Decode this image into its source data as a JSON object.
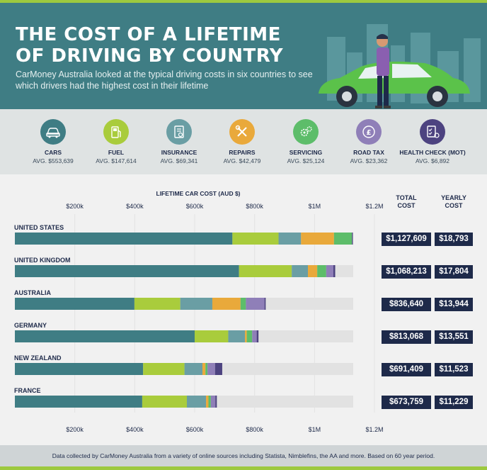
{
  "header": {
    "title_line1": "THE COST OF A LIFETIME",
    "title_line2": "OF DRIVING BY COUNTRY",
    "subtitle": "CarMoney Australia looked at the typical driving costs in six countries to see which drivers had the highest cost in their lifetime"
  },
  "categories": [
    {
      "label": "CARS",
      "avg": "AVG. $553,639",
      "icon": "car-icon",
      "color": "#3f7d84"
    },
    {
      "label": "FUEL",
      "avg": "AVG. $147,614",
      "icon": "fuel-pump-icon",
      "color": "#a9cc3c"
    },
    {
      "label": "INSURANCE",
      "avg": "AVG. $69,341",
      "icon": "insurance-document-icon",
      "color": "#6a9ea4"
    },
    {
      "label": "REPAIRS",
      "avg": "AVG. $42,479",
      "icon": "wrench-screwdriver-icon",
      "color": "#e9a93b"
    },
    {
      "label": "SERVICING",
      "avg": "AVG. $25,124",
      "icon": "gears-icon",
      "color": "#5dbd6a"
    },
    {
      "label": "ROAD TAX",
      "avg": "AVG. $23,362",
      "icon": "pound-coin-icon",
      "color": "#8f7fb8"
    },
    {
      "label": "HEALTH CHECK (MOT)",
      "avg": "AVG. $6,892",
      "icon": "checklist-car-icon",
      "color": "#4d4380"
    }
  ],
  "columns": {
    "total_line1": "TOTAL",
    "total_line2": "COST",
    "yearly_line1": "YEARLY",
    "yearly_line2": "COST"
  },
  "chart_data": {
    "type": "bar",
    "orientation": "horizontal",
    "stacked": true,
    "xlabel": "LIFETIME CAR COST (AUD $)",
    "xlim": [
      0,
      1200000
    ],
    "ticks": [
      200000,
      400000,
      600000,
      800000,
      1000000,
      1200000
    ],
    "tick_labels": [
      "$200k",
      "$400k",
      "$600k",
      "$800k",
      "$1M",
      "$1.2M"
    ],
    "categories": [
      "UNITED STATES",
      "UNITED KINGDOM",
      "AUSTRALIA",
      "GERMANY",
      "NEW ZEALAND",
      "FRANCE"
    ],
    "series": [
      {
        "name": "CARS",
        "color": "#3f7d84",
        "values": [
          726000,
          748000,
          399000,
          600000,
          428000,
          425000
        ]
      },
      {
        "name": "FUEL",
        "color": "#a9cc3c",
        "values": [
          154000,
          176000,
          153000,
          112000,
          138000,
          149000
        ]
      },
      {
        "name": "INSURANCE",
        "color": "#6a9ea4",
        "values": [
          75000,
          54000,
          107000,
          56000,
          60000,
          64000
        ]
      },
      {
        "name": "REPAIRS",
        "color": "#e9a93b",
        "values": [
          110000,
          31000,
          94000,
          6000,
          10000,
          8000
        ]
      },
      {
        "name": "SERVICING",
        "color": "#5dbd6a",
        "values": [
          60000,
          30000,
          18000,
          18000,
          7000,
          8000
        ]
      },
      {
        "name": "ROAD TAX",
        "color": "#8f7fb8",
        "values": [
          0,
          24000,
          62000,
          15000,
          25000,
          15000
        ]
      },
      {
        "name": "HEALTH CHECK (MOT)",
        "color": "#4d4380",
        "values": [
          3000,
          6000,
          4000,
          6000,
          24000,
          5000
        ]
      }
    ],
    "totals": [
      "$1,127,609",
      "$1,068,213",
      "$836,640",
      "$813,068",
      "$691,409",
      "$673,759"
    ],
    "yearly": [
      "$18,793",
      "$17,804",
      "$13,944",
      "$13,551",
      "$11,523",
      "$11,229"
    ]
  },
  "footer": "Data collected by CarMoney Australia from a variety of online sources including Statista, Nimblefins, the AA and more. Based on 60 year period."
}
